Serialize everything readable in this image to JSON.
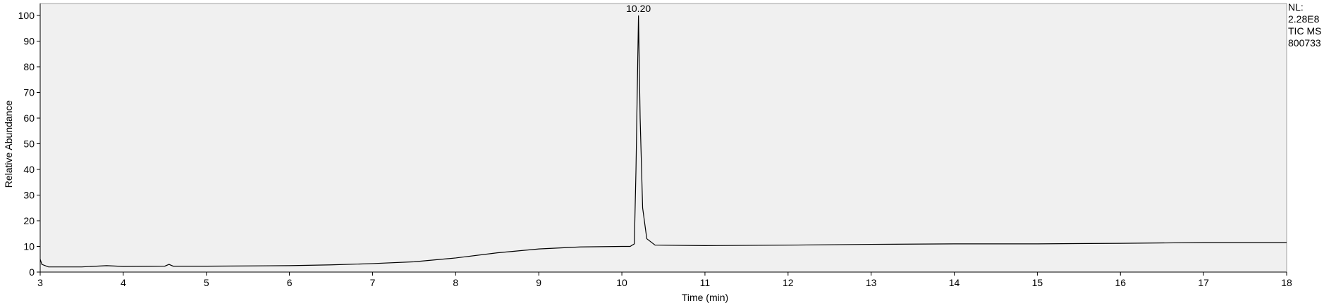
{
  "chart_data": {
    "type": "line",
    "x_label": "Time (min)",
    "y_label": "Relative Abundance",
    "side_info": [
      "NL:",
      "2.28E8",
      "TIC  MS",
      "800733"
    ],
    "annotations": [
      {
        "text": "10.20",
        "x": 10.2,
        "y": 100
      }
    ],
    "xlim": [
      3,
      18
    ],
    "ylim": [
      0,
      100
    ],
    "xticks": [
      3,
      4,
      5,
      6,
      7,
      8,
      9,
      10,
      11,
      12,
      13,
      14,
      15,
      16,
      17,
      18
    ],
    "yticks": [
      0,
      10,
      20,
      30,
      40,
      50,
      60,
      70,
      80,
      90,
      100
    ],
    "series": [
      {
        "color": "#000000",
        "x": [
          3.0,
          3.02,
          3.1,
          3.5,
          3.8,
          4.0,
          4.5,
          4.55,
          4.6,
          5.0,
          6.0,
          6.5,
          7.0,
          7.5,
          8.0,
          8.5,
          9.0,
          9.5,
          10.0,
          10.1,
          10.15,
          10.17,
          10.2,
          10.22,
          10.25,
          10.3,
          10.4,
          11.0,
          12.0,
          13.0,
          14.0,
          15.0,
          16.0,
          17.0,
          18.0
        ],
        "values": [
          5,
          3,
          2,
          2,
          2.5,
          2.2,
          2.3,
          3,
          2.3,
          2.3,
          2.5,
          2.8,
          3.3,
          4,
          5.5,
          7.5,
          9,
          9.8,
          10,
          10,
          11,
          40,
          100,
          60,
          25,
          13,
          10.5,
          10.3,
          10.5,
          10.8,
          11,
          11,
          11.2,
          11.5,
          11.5
        ]
      }
    ]
  }
}
